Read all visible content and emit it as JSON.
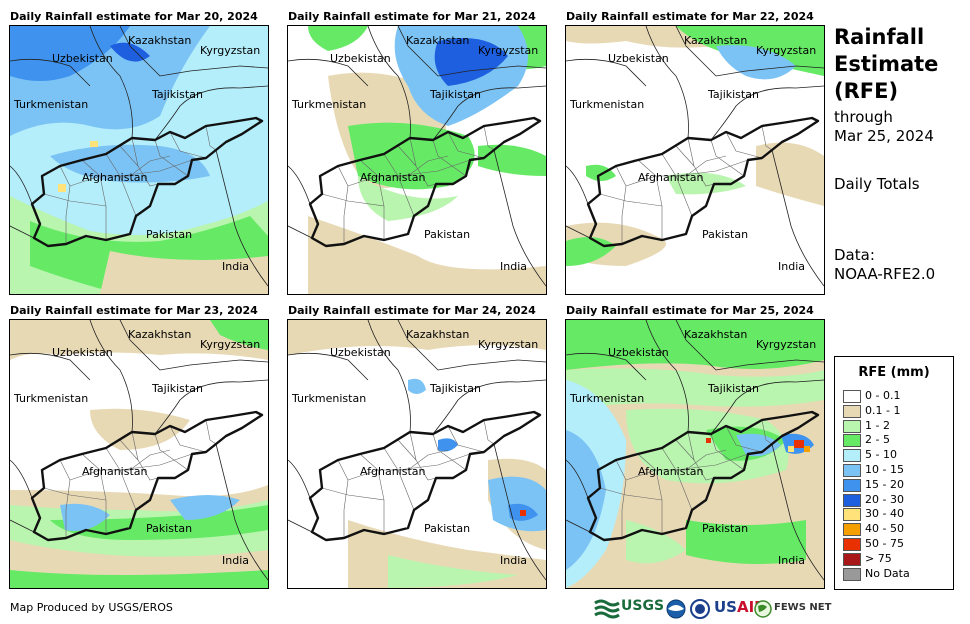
{
  "panels": [
    {
      "title": "Daily Rainfall estimate for Mar 20, 2024",
      "day": "Mar 20"
    },
    {
      "title": "Daily Rainfall estimate for Mar 21, 2024",
      "day": "Mar 21"
    },
    {
      "title": "Daily Rainfall estimate for Mar 22, 2024",
      "day": "Mar 22"
    },
    {
      "title": "Daily Rainfall estimate for Mar 23, 2024",
      "day": "Mar 23"
    },
    {
      "title": "Daily Rainfall estimate for Mar 24, 2024",
      "day": "Mar 24"
    },
    {
      "title": "Daily Rainfall estimate for Mar 25, 2024",
      "day": "Mar 25"
    }
  ],
  "map_labels": {
    "kazakhstan": "Kazakhstan",
    "kyrgyzstan": "Kyrgyzstan",
    "uzbekistan": "Uzbekistan",
    "tajikistan": "Tajikistan",
    "turkmenistan": "Turkmenistan",
    "afghanistan": "Afghanistan",
    "pakistan": "Pakistan",
    "india": "India"
  },
  "side": {
    "title_line1": "Rainfall",
    "title_line2": "Estimate",
    "title_line3": "(RFE)",
    "through": "through",
    "through_date": "Mar 25, 2024",
    "totals": "Daily Totals",
    "data_label": "Data:",
    "data_source": "NOAA-RFE2.0"
  },
  "legend": {
    "title": "RFE (mm)",
    "items": [
      {
        "label": "0 - 0.1",
        "color": "#ffffff"
      },
      {
        "label": "0.1 - 1",
        "color": "#e8d9b5"
      },
      {
        "label": "1 - 2",
        "color": "#b9f5ae"
      },
      {
        "label": "2 - 5",
        "color": "#66ea66"
      },
      {
        "label": "5 - 10",
        "color": "#b4eefa"
      },
      {
        "label": "10 - 15",
        "color": "#7cc3f5"
      },
      {
        "label": "15 - 20",
        "color": "#3f93ee"
      },
      {
        "label": "20 - 30",
        "color": "#1e5fe0"
      },
      {
        "label": "30 - 40",
        "color": "#ffe27a"
      },
      {
        "label": "40 - 50",
        "color": "#f5a000"
      },
      {
        "label": "50 - 75",
        "color": "#e83000"
      },
      {
        "label": "> 75",
        "color": "#a81818"
      },
      {
        "label": "No Data",
        "color": "#999999"
      }
    ]
  },
  "credit": "Map Produced by USGS/EROS",
  "logos": {
    "usgs": "USGS",
    "usaid": "USAID",
    "fewsnet": "FEWS NET"
  }
}
